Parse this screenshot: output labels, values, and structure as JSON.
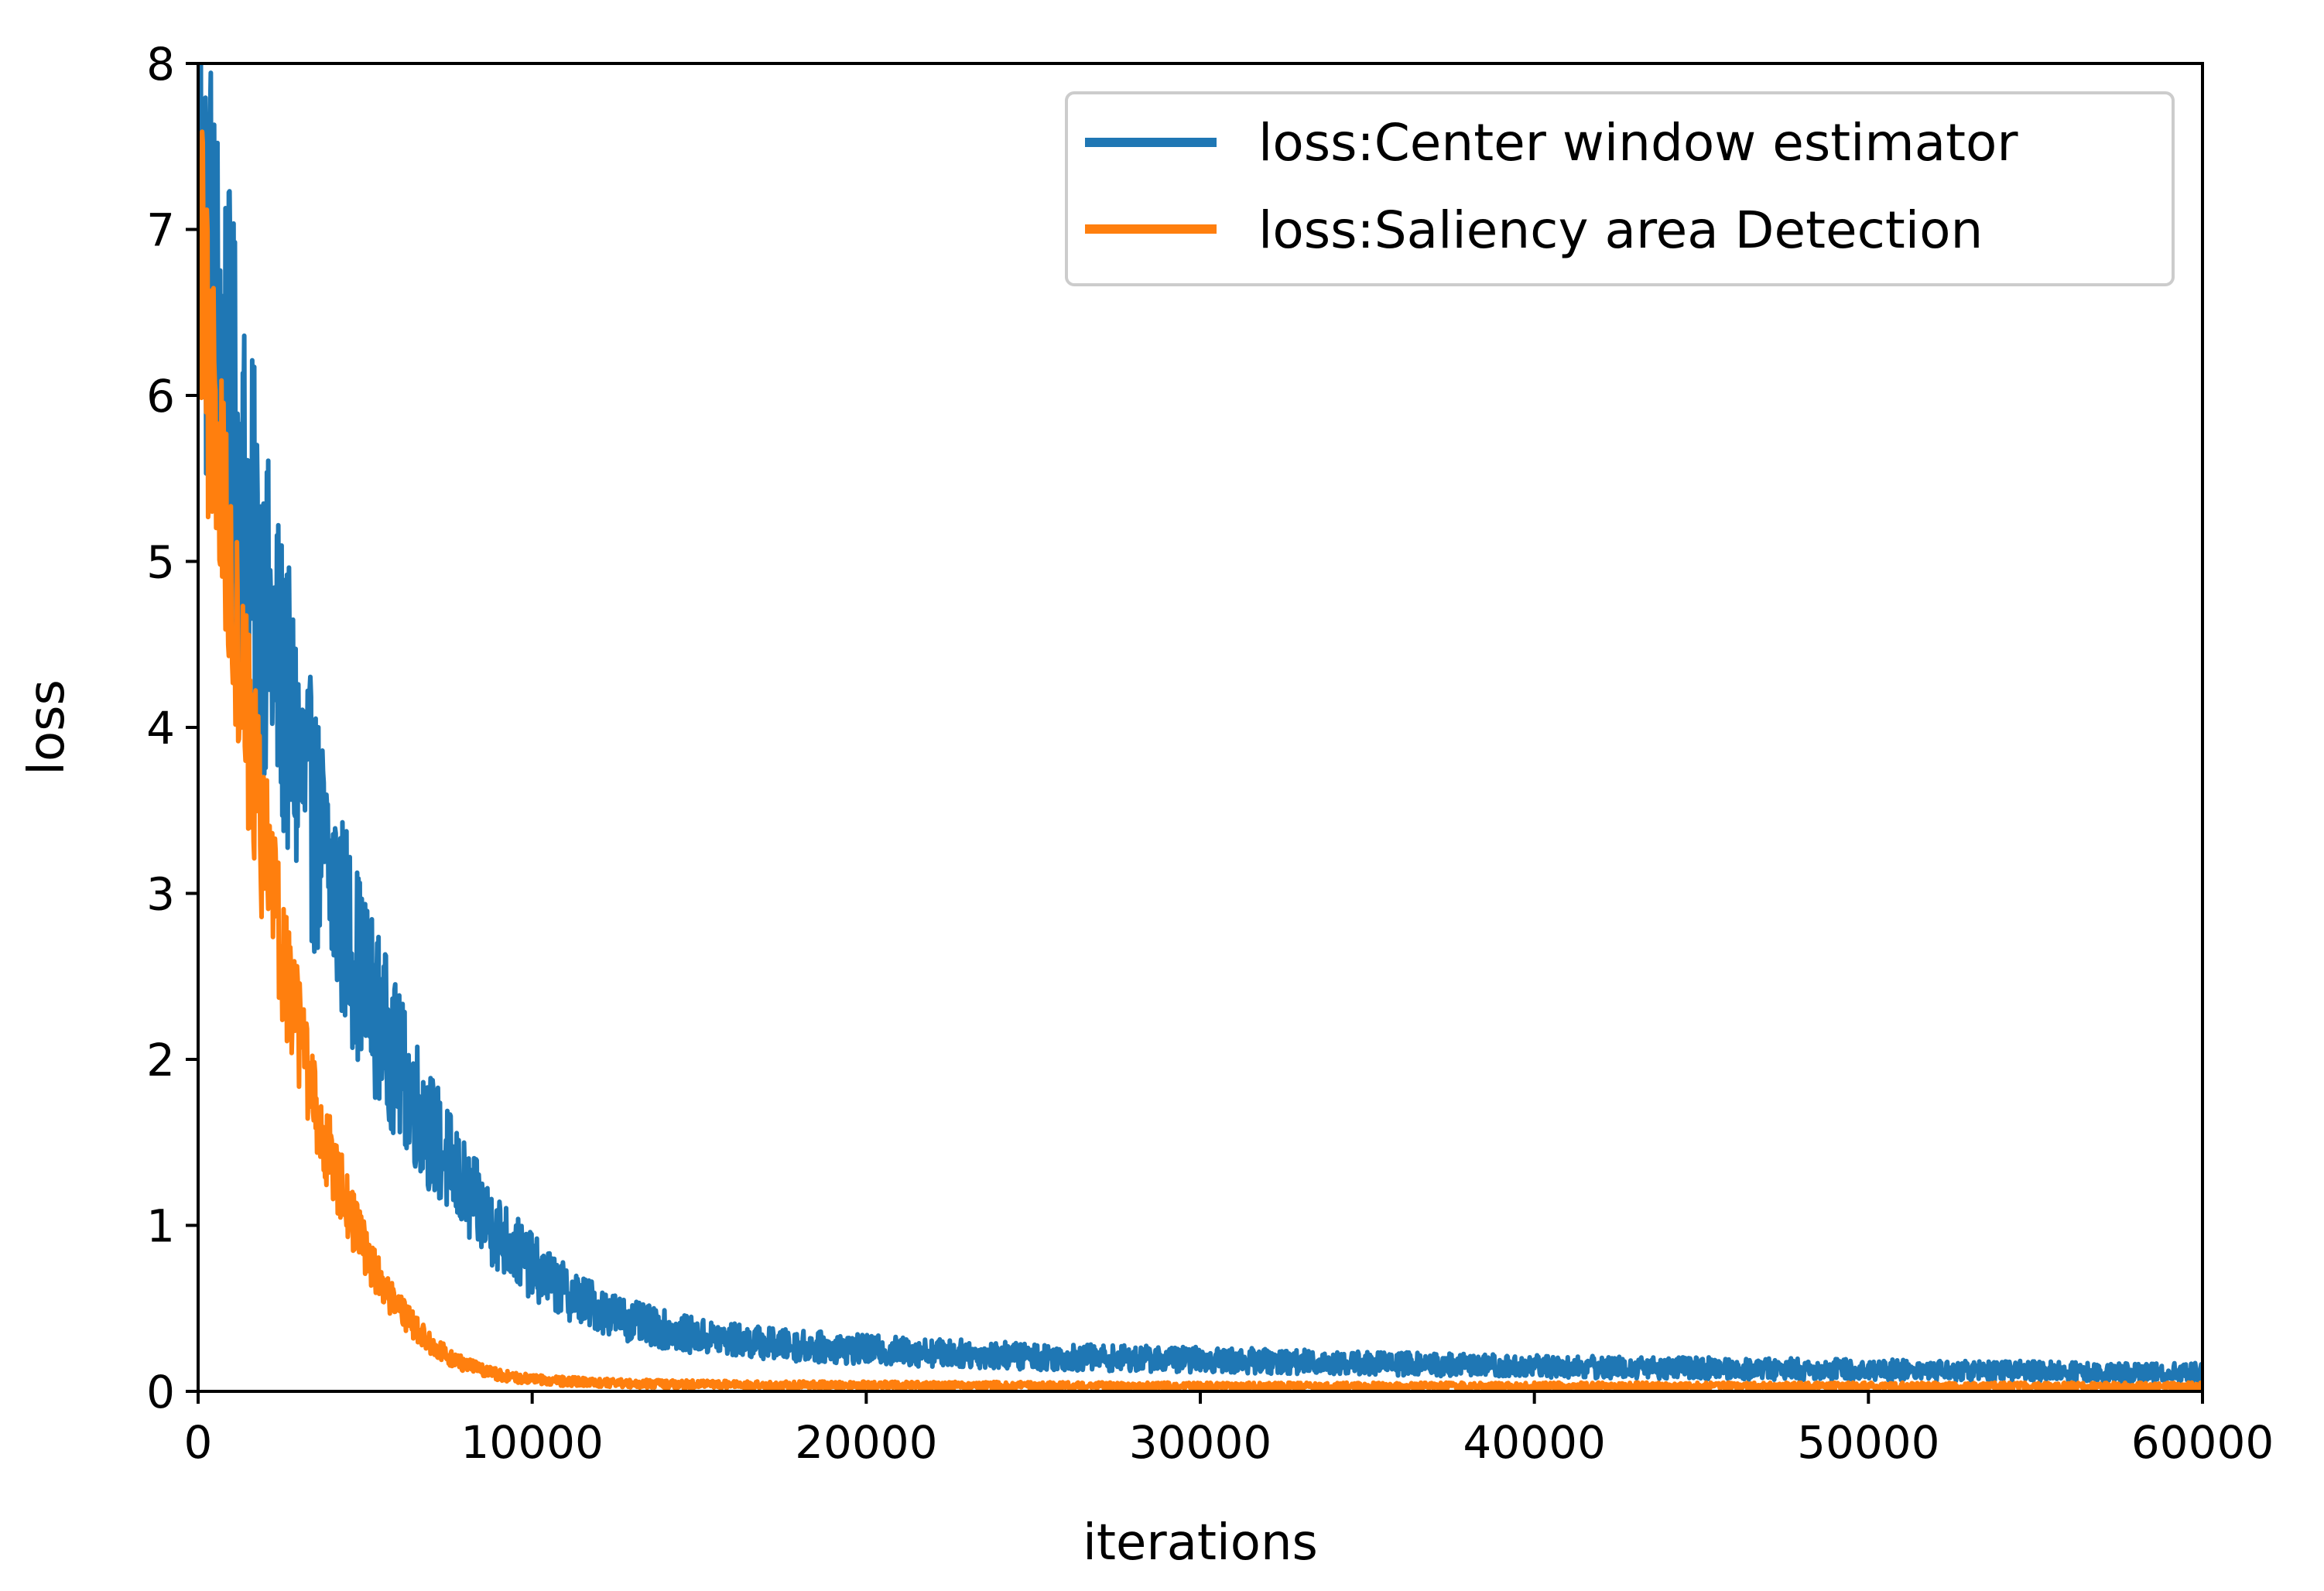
{
  "chart_data": {
    "type": "line",
    "title": "",
    "xlabel": "iterations",
    "ylabel": "loss",
    "xlim": [
      0,
      60000
    ],
    "ylim": [
      0,
      8
    ],
    "xticks": [
      0,
      10000,
      20000,
      30000,
      40000,
      50000,
      60000
    ],
    "yticks": [
      0,
      1,
      2,
      3,
      4,
      5,
      6,
      7,
      8
    ],
    "grid": false,
    "legend_position": "top-right",
    "series": [
      {
        "name": "loss:Center window estimator",
        "color": "#1f77b4",
        "x": [
          0,
          500,
          1000,
          1500,
          2000,
          2500,
          3000,
          3500,
          4000,
          4500,
          5000,
          5500,
          6000,
          7000,
          8000,
          9000,
          10000,
          11000,
          12000,
          13000,
          14000,
          15000,
          17500,
          20000,
          22500,
          25000,
          27500,
          30000,
          32500,
          35000,
          37500,
          40000,
          42500,
          45000,
          47500,
          50000,
          52500,
          55000,
          57500,
          60000
        ],
        "y": [
          7.2,
          6.5,
          5.85,
          5.25,
          4.7,
          4.25,
          3.8,
          3.4,
          3.05,
          2.75,
          2.45,
          2.2,
          1.95,
          1.55,
          1.2,
          0.95,
          0.75,
          0.6,
          0.5,
          0.42,
          0.37,
          0.33,
          0.28,
          0.25,
          0.23,
          0.21,
          0.2,
          0.19,
          0.18,
          0.17,
          0.16,
          0.15,
          0.145,
          0.14,
          0.135,
          0.13,
          0.125,
          0.12,
          0.115,
          0.11
        ],
        "noise": 0.12,
        "noise_floor": 0.02
      },
      {
        "name": "loss:Saliency area Detection",
        "color": "#ff7f0e",
        "x": [
          0,
          500,
          1000,
          1500,
          2000,
          2500,
          3000,
          3500,
          4000,
          4500,
          5000,
          5500,
          6000,
          6500,
          7000,
          7500,
          8000,
          9000,
          10000,
          12000,
          15000,
          20000,
          30000,
          40000,
          50000,
          60000
        ],
        "y": [
          6.8,
          5.8,
          4.85,
          4.0,
          3.25,
          2.65,
          2.15,
          1.72,
          1.38,
          1.1,
          0.85,
          0.65,
          0.5,
          0.38,
          0.28,
          0.21,
          0.16,
          0.1,
          0.07,
          0.05,
          0.04,
          0.035,
          0.03,
          0.03,
          0.03,
          0.03
        ],
        "noise": 0.09,
        "noise_floor": 0.01
      }
    ]
  }
}
